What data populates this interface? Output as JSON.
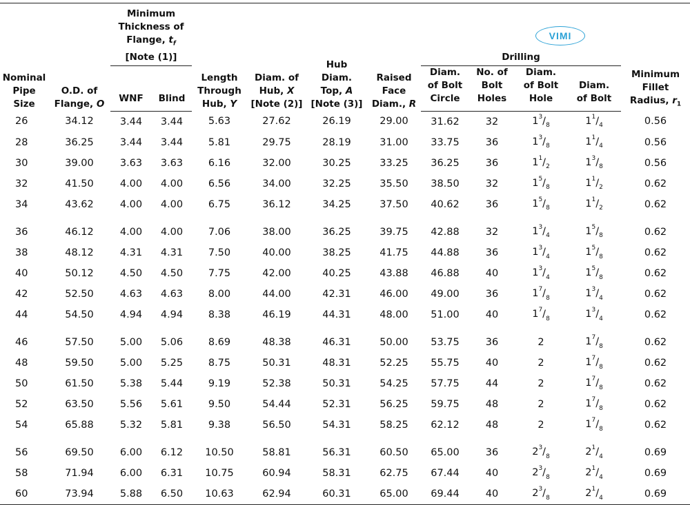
{
  "headers": {
    "nominal": [
      "Nominal",
      "Pipe",
      "Size"
    ],
    "od": [
      "O.D. of",
      "Flange, O"
    ],
    "min_thick_group": [
      "Minimum",
      "Thickness of",
      "Flange, tf",
      "[Note (1)]"
    ],
    "wnf": "WNF",
    "blind": "Blind",
    "length": [
      "Length",
      "Through",
      "Hub, Y"
    ],
    "diam_hub": [
      "Diam. of",
      "Hub, X",
      "[Note (2)]"
    ],
    "hub_top": [
      "Hub",
      "Diam.",
      "Top, A",
      "[Note (3)]"
    ],
    "raised": [
      "Raised",
      "Face",
      "Diam., R"
    ],
    "drilling_group": "Drilling",
    "bolt_circle": [
      "Diam.",
      "of Bolt",
      "Circle"
    ],
    "bolt_holes": [
      "No. of",
      "Bolt",
      "Holes"
    ],
    "bolt_hole_diam": [
      "Diam.",
      "of Bolt",
      "Hole"
    ],
    "bolt_diam": [
      "Diam.",
      "of Bolt"
    ],
    "fillet": [
      "Minimum",
      "Fillet",
      "Radius, r1"
    ]
  },
  "watermark": "VIMI",
  "rows": [
    [
      "26",
      "34.12",
      "3.44",
      "3.44",
      "5.63",
      "27.62",
      "26.19",
      "29.00",
      "31.62",
      "32",
      "1 3/8",
      "1 1/4",
      "0.56"
    ],
    [
      "28",
      "36.25",
      "3.44",
      "3.44",
      "5.81",
      "29.75",
      "28.19",
      "31.00",
      "33.75",
      "36",
      "1 3/8",
      "1 1/4",
      "0.56"
    ],
    [
      "30",
      "39.00",
      "3.63",
      "3.63",
      "6.16",
      "32.00",
      "30.25",
      "33.25",
      "36.25",
      "36",
      "1 1/2",
      "1 3/8",
      "0.56"
    ],
    [
      "32",
      "41.50",
      "4.00",
      "4.00",
      "6.56",
      "34.00",
      "32.25",
      "35.50",
      "38.50",
      "32",
      "1 5/8",
      "1 1/2",
      "0.62"
    ],
    [
      "34",
      "43.62",
      "4.00",
      "4.00",
      "6.75",
      "36.12",
      "34.25",
      "37.50",
      "40.62",
      "36",
      "1 5/8",
      "1 1/2",
      "0.62"
    ],
    [
      "36",
      "46.12",
      "4.00",
      "4.00",
      "7.06",
      "38.00",
      "36.25",
      "39.75",
      "42.88",
      "32",
      "1 3/4",
      "1 5/8",
      "0.62"
    ],
    [
      "38",
      "48.12",
      "4.31",
      "4.31",
      "7.50",
      "40.00",
      "38.25",
      "41.75",
      "44.88",
      "36",
      "1 3/4",
      "1 5/8",
      "0.62"
    ],
    [
      "40",
      "50.12",
      "4.50",
      "4.50",
      "7.75",
      "42.00",
      "40.25",
      "43.88",
      "46.88",
      "40",
      "1 3/4",
      "1 5/8",
      "0.62"
    ],
    [
      "42",
      "52.50",
      "4.63",
      "4.63",
      "8.00",
      "44.00",
      "42.31",
      "46.00",
      "49.00",
      "36",
      "1 7/8",
      "1 3/4",
      "0.62"
    ],
    [
      "44",
      "54.50",
      "4.94",
      "4.94",
      "8.38",
      "46.19",
      "44.31",
      "48.00",
      "51.00",
      "40",
      "1 7/8",
      "1 3/4",
      "0.62"
    ],
    [
      "46",
      "57.50",
      "5.00",
      "5.06",
      "8.69",
      "48.38",
      "46.31",
      "50.00",
      "53.75",
      "36",
      "2",
      "1 7/8",
      "0.62"
    ],
    [
      "48",
      "59.50",
      "5.00",
      "5.25",
      "8.75",
      "50.31",
      "48.31",
      "52.25",
      "55.75",
      "40",
      "2",
      "1 7/8",
      "0.62"
    ],
    [
      "50",
      "61.50",
      "5.38",
      "5.44",
      "9.19",
      "52.38",
      "50.31",
      "54.25",
      "57.75",
      "44",
      "2",
      "1 7/8",
      "0.62"
    ],
    [
      "52",
      "63.50",
      "5.56",
      "5.61",
      "9.50",
      "54.44",
      "52.31",
      "56.25",
      "59.75",
      "48",
      "2",
      "1 7/8",
      "0.62"
    ],
    [
      "54",
      "65.88",
      "5.32",
      "5.81",
      "9.38",
      "56.50",
      "54.31",
      "58.25",
      "62.12",
      "48",
      "2",
      "1 7/8",
      "0.62"
    ],
    [
      "56",
      "69.50",
      "6.00",
      "6.12",
      "10.50",
      "58.81",
      "56.31",
      "60.50",
      "65.00",
      "36",
      "2 3/8",
      "2 1/4",
      "0.69"
    ],
    [
      "58",
      "71.94",
      "6.00",
      "6.31",
      "10.75",
      "60.94",
      "58.31",
      "62.75",
      "67.44",
      "40",
      "2 3/8",
      "2 1/4",
      "0.69"
    ],
    [
      "60",
      "73.94",
      "5.88",
      "6.50",
      "10.63",
      "62.94",
      "60.31",
      "65.00",
      "69.44",
      "40",
      "2 3/8",
      "2 1/4",
      "0.69"
    ]
  ]
}
